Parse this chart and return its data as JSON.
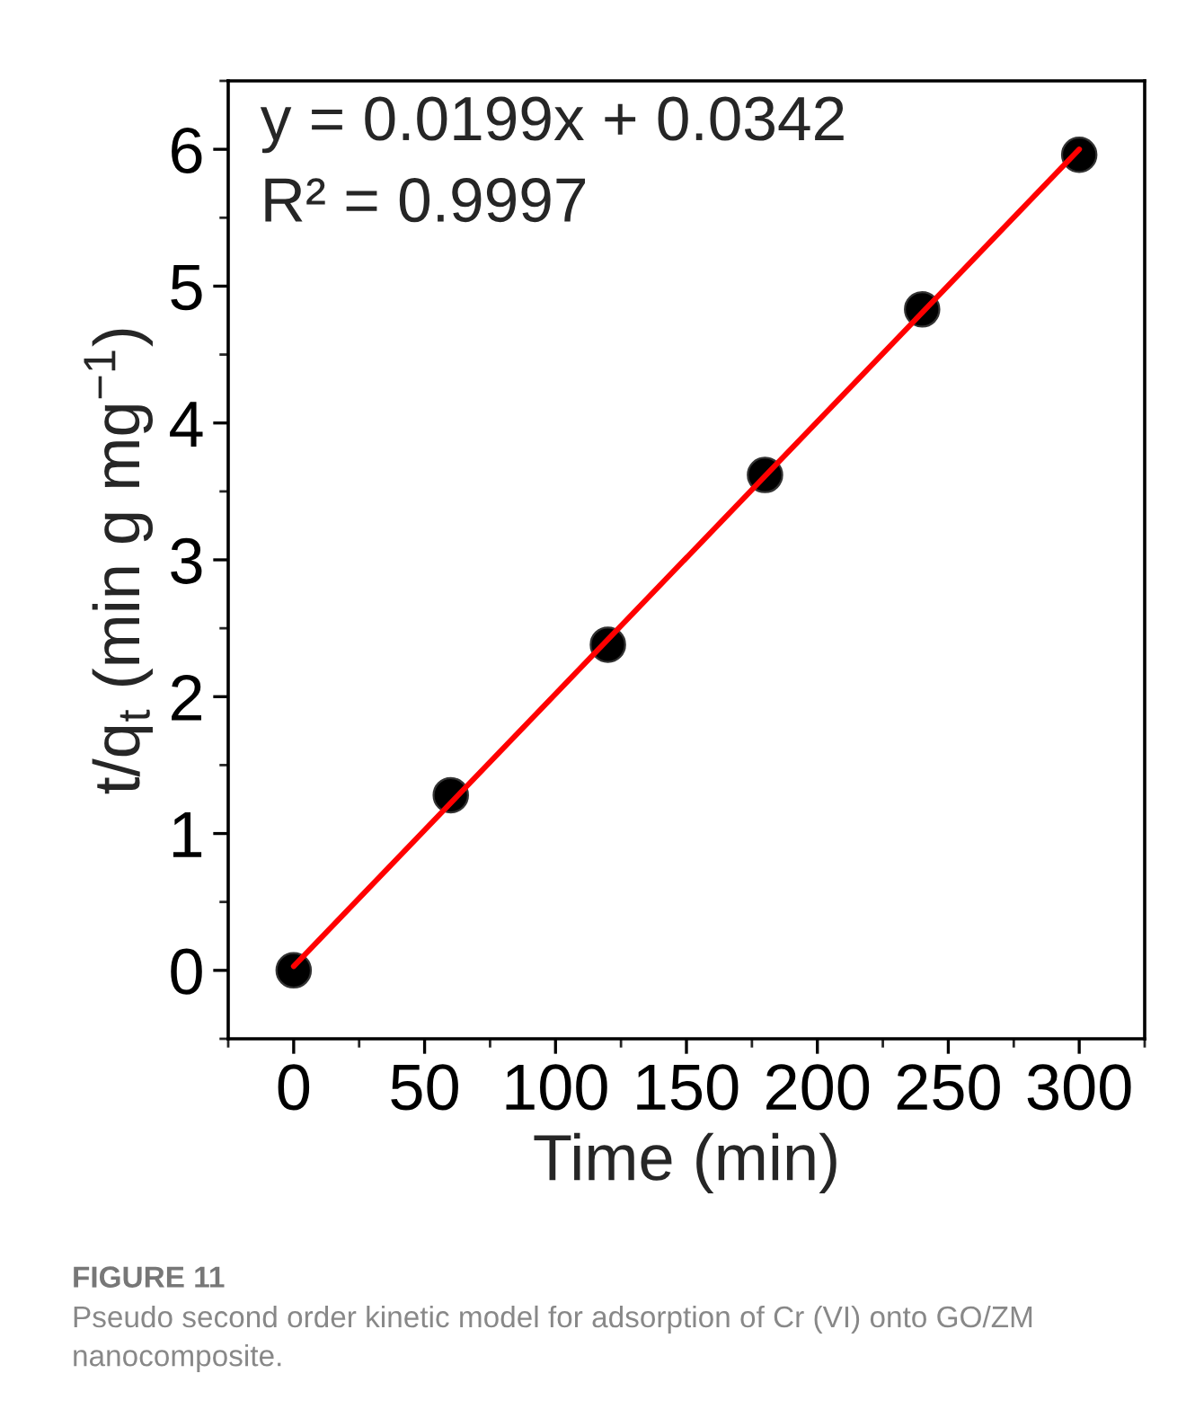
{
  "chart_data": {
    "type": "scatter",
    "title": "FIGURE 11",
    "subtitle": "Pseudo second order kinetic model for adsorption of Cr (VI) onto GO/ZM nanocomposite.",
    "xlabel": "Time (min)",
    "ylabel": "t/q$_{t}$ (min g mg$^{−1}$)",
    "annotations": [
      "y = 0.0199x + 0.0342",
      "R² = 0.9997"
    ],
    "x": [
      0,
      60,
      120,
      180,
      240,
      300
    ],
    "series": [
      {
        "color": "#000000",
        "marker": "circle",
        "values": [
          0,
          1.28,
          2.38,
          3.62,
          4.83,
          5.96
        ]
      },
      {
        "type": "line",
        "color": "#ff0000",
        "line_style": "solid",
        "marker": "none",
        "x": [
          0,
          300
        ],
        "values": [
          0.03,
          6.0
        ]
      }
    ],
    "xlim": [
      -25,
      325
    ],
    "xticks": [
      0,
      50,
      100,
      150,
      200,
      250,
      300
    ],
    "ylim": [
      -0.5,
      6.5
    ],
    "yticks": [
      0,
      1,
      2,
      3,
      4,
      5,
      6
    ],
    "grid": false,
    "legend": false
  }
}
